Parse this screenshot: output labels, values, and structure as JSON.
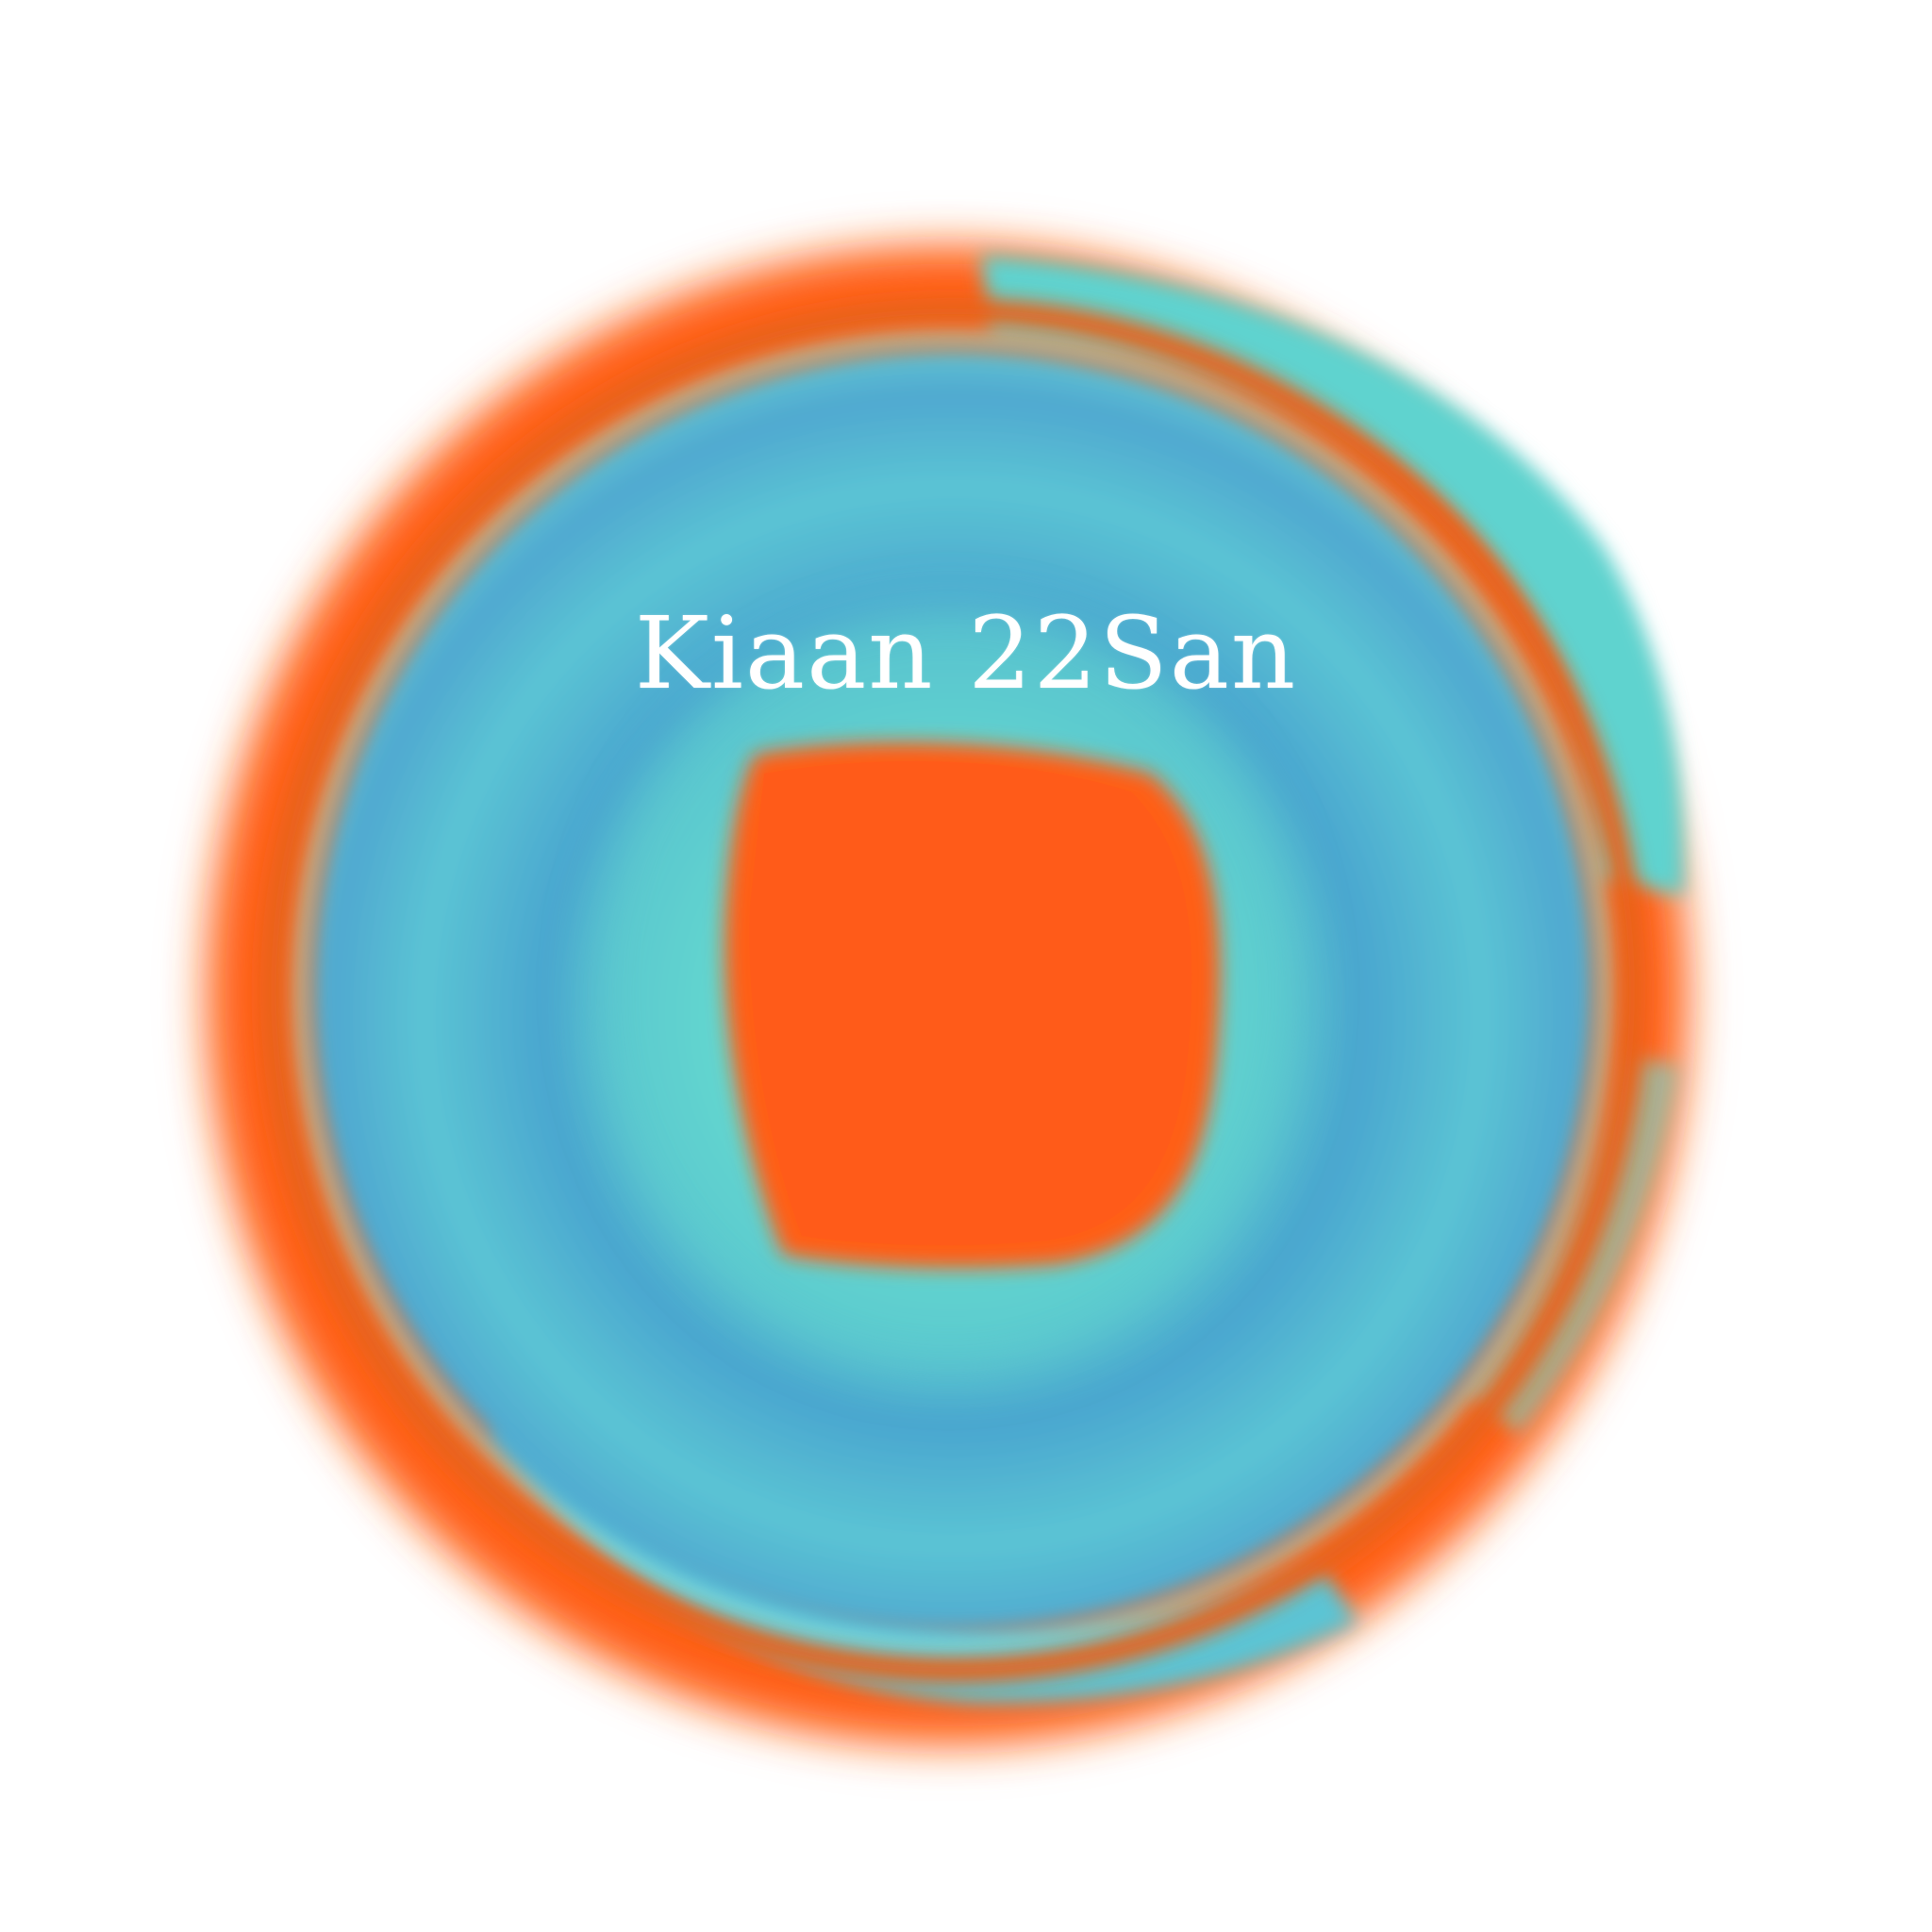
{
  "avatar": {
    "username": "Kiaan 22San",
    "colors": {
      "background": "#ffffff",
      "orange": "#ff5f17",
      "orange_dark": "#e8641e",
      "cyan": "#5fd3cf",
      "blue": "#4aa6cf",
      "teal": "#6fd9d2"
    }
  }
}
